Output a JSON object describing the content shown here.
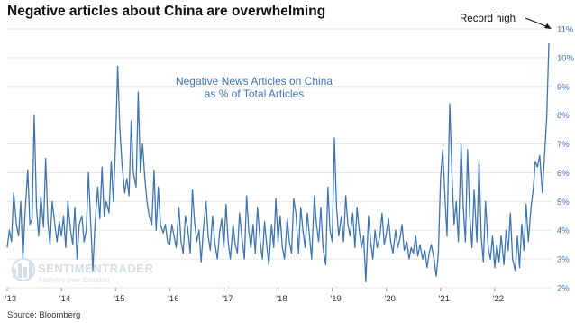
{
  "title": "Negative articles about China are overwhelming",
  "source": "Source: Bloomberg",
  "watermark": {
    "main": "SENTIMENTRADER",
    "sub": "Analysis over Emotion"
  },
  "colors": {
    "line": "#3f75b1",
    "grid": "#e6e6e6",
    "axis_text": "#3f75b1"
  },
  "chart_data": {
    "type": "line",
    "title": "Negative News Articles on China",
    "subtitle": "as % of Total Articles",
    "annotation": "Record high",
    "y_axis_position": "right",
    "ylim": [
      2,
      11
    ],
    "yticks": [
      2,
      3,
      4,
      5,
      6,
      7,
      8,
      9,
      10,
      11
    ],
    "ytick_labels": [
      "2%",
      "3%",
      "4%",
      "5%",
      "6%",
      "7%",
      "8%",
      "9%",
      "10%",
      "11%"
    ],
    "xlim": [
      2013.0,
      2023.05
    ],
    "xticks": [
      2013,
      2014,
      2015,
      2016,
      2017,
      2018,
      2019,
      2020,
      2021,
      2022
    ],
    "xtick_labels": [
      "'13",
      "'14",
      "'15",
      "'16",
      "'17",
      "'18",
      "'19",
      "'20",
      "'21",
      "'22"
    ],
    "grid": true,
    "series": [
      {
        "x": [
          2013.0,
          2013.04,
          2013.08,
          2013.12,
          2013.17,
          2013.21,
          2013.25,
          2013.29,
          2013.33,
          2013.38,
          2013.42,
          2013.46,
          2013.5,
          2013.54,
          2013.58,
          2013.62,
          2013.67,
          2013.71,
          2013.75,
          2013.79,
          2013.83,
          2013.88,
          2013.92,
          2013.96,
          2014.0,
          2014.04,
          2014.08,
          2014.12,
          2014.17,
          2014.21,
          2014.25,
          2014.29,
          2014.33,
          2014.38,
          2014.42,
          2014.46,
          2014.5,
          2014.54,
          2014.58,
          2014.62,
          2014.67,
          2014.71,
          2014.75,
          2014.79,
          2014.83,
          2014.88,
          2014.92,
          2014.96,
          2015.0,
          2015.04,
          2015.08,
          2015.12,
          2015.17,
          2015.21,
          2015.25,
          2015.29,
          2015.33,
          2015.38,
          2015.42,
          2015.46,
          2015.5,
          2015.54,
          2015.58,
          2015.62,
          2015.67,
          2015.71,
          2015.75,
          2015.79,
          2015.83,
          2015.88,
          2015.92,
          2015.96,
          2016.0,
          2016.04,
          2016.08,
          2016.12,
          2016.17,
          2016.21,
          2016.25,
          2016.29,
          2016.33,
          2016.38,
          2016.42,
          2016.46,
          2016.5,
          2016.54,
          2016.58,
          2016.62,
          2016.67,
          2016.71,
          2016.75,
          2016.79,
          2016.83,
          2016.88,
          2016.92,
          2016.96,
          2017.0,
          2017.04,
          2017.08,
          2017.12,
          2017.17,
          2017.21,
          2017.25,
          2017.29,
          2017.33,
          2017.38,
          2017.42,
          2017.46,
          2017.5,
          2017.54,
          2017.58,
          2017.62,
          2017.67,
          2017.71,
          2017.75,
          2017.79,
          2017.83,
          2017.88,
          2017.92,
          2017.96,
          2018.0,
          2018.04,
          2018.08,
          2018.12,
          2018.17,
          2018.21,
          2018.25,
          2018.29,
          2018.33,
          2018.38,
          2018.42,
          2018.46,
          2018.5,
          2018.54,
          2018.58,
          2018.62,
          2018.67,
          2018.71,
          2018.75,
          2018.79,
          2018.83,
          2018.88,
          2018.92,
          2018.96,
          2019.0,
          2019.04,
          2019.08,
          2019.12,
          2019.17,
          2019.21,
          2019.25,
          2019.29,
          2019.33,
          2019.38,
          2019.42,
          2019.46,
          2019.5,
          2019.54,
          2019.58,
          2019.62,
          2019.67,
          2019.71,
          2019.75,
          2019.79,
          2019.83,
          2019.88,
          2019.92,
          2019.96,
          2020.0,
          2020.04,
          2020.08,
          2020.12,
          2020.17,
          2020.21,
          2020.25,
          2020.29,
          2020.33,
          2020.38,
          2020.42,
          2020.46,
          2020.5,
          2020.54,
          2020.58,
          2020.62,
          2020.67,
          2020.71,
          2020.75,
          2020.79,
          2020.83,
          2020.88,
          2020.92,
          2020.96,
          2021.0,
          2021.04,
          2021.08,
          2021.12,
          2021.17,
          2021.21,
          2021.25,
          2021.29,
          2021.33,
          2021.38,
          2021.42,
          2021.46,
          2021.5,
          2021.54,
          2021.58,
          2021.62,
          2021.67,
          2021.71,
          2021.75,
          2021.79,
          2021.83,
          2021.88,
          2021.92,
          2021.96,
          2022.0,
          2022.04,
          2022.08,
          2022.12,
          2022.17,
          2022.21,
          2022.25,
          2022.29,
          2022.33,
          2022.38,
          2022.42,
          2022.46,
          2022.5,
          2022.54,
          2022.58,
          2022.62,
          2022.67,
          2022.71,
          2022.75,
          2022.79,
          2022.83,
          2022.88,
          2022.92,
          2022.96,
          2023.0
        ],
        "y": [
          3.4,
          4.0,
          3.6,
          5.3,
          4.2,
          3.8,
          5.0,
          3.0,
          4.6,
          6.1,
          4.2,
          4.4,
          8.0,
          4.8,
          3.8,
          5.2,
          4.1,
          6.5,
          4.3,
          3.5,
          5.0,
          4.2,
          3.6,
          4.3,
          3.8,
          4.5,
          3.4,
          5.0,
          4.0,
          3.5,
          4.8,
          3.0,
          4.2,
          4.5,
          3.6,
          4.0,
          6.0,
          4.3,
          2.6,
          4.2,
          5.5,
          4.4,
          6.2,
          4.5,
          5.0,
          4.6,
          6.4,
          5.0,
          7.0,
          9.7,
          7.5,
          6.3,
          5.3,
          5.8,
          5.2,
          7.8,
          6.0,
          5.5,
          8.8,
          6.0,
          7.0,
          5.8,
          5.0,
          4.5,
          4.2,
          6.1,
          4.0,
          5.5,
          4.2,
          3.9,
          4.2,
          3.6,
          3.5,
          4.2,
          3.8,
          3.4,
          4.8,
          3.6,
          3.2,
          4.5,
          4.1,
          3.2,
          5.4,
          4.3,
          3.6,
          4.0,
          2.9,
          4.0,
          5.0,
          3.8,
          3.3,
          4.5,
          3.6,
          3.0,
          3.9,
          4.4,
          3.4,
          4.9,
          3.6,
          3.0,
          4.2,
          3.5,
          3.2,
          4.6,
          3.8,
          3.0,
          5.2,
          4.0,
          3.4,
          4.2,
          3.2,
          4.8,
          3.6,
          3.0,
          4.3,
          3.5,
          2.8,
          4.2,
          3.4,
          5.1,
          3.6,
          4.5,
          3.4,
          3.0,
          4.4,
          3.6,
          3.2,
          5.1,
          4.6,
          3.2,
          4.8,
          4.0,
          3.4,
          4.6,
          3.8,
          3.0,
          5.2,
          4.2,
          3.6,
          4.8,
          3.4,
          2.8,
          5.5,
          4.0,
          3.6,
          7.2,
          4.8,
          3.8,
          4.5,
          3.6,
          5.2,
          4.2,
          3.8,
          4.6,
          3.4,
          4.8,
          4.0,
          3.4,
          3.8,
          2.2,
          4.5,
          3.6,
          3.0,
          4.0,
          3.4,
          3.8,
          4.6,
          3.5,
          3.9,
          4.4,
          3.6,
          3.2,
          4.0,
          3.4,
          3.7,
          4.2,
          3.3,
          3.6,
          3.0,
          3.4,
          3.2,
          3.8,
          3.1,
          3.5,
          3.0,
          3.3,
          2.7,
          3.2,
          3.5,
          3.0,
          2.4,
          3.2,
          5.8,
          6.8,
          5.2,
          3.8,
          8.4,
          6.0,
          4.2,
          5.0,
          3.6,
          7.0,
          4.8,
          3.6,
          6.8,
          4.5,
          3.4,
          5.4,
          3.6,
          6.4,
          3.8,
          2.9,
          5.0,
          3.4,
          3.0,
          3.8,
          2.7,
          3.5,
          2.9,
          3.8,
          2.8,
          4.0,
          3.3,
          4.6,
          3.0,
          2.6,
          3.8,
          2.7,
          4.2,
          3.3,
          4.9,
          3.6,
          4.8,
          5.4,
          6.4,
          6.2,
          6.6,
          5.3,
          6.6,
          7.9,
          10.5
        ]
      }
    ]
  }
}
